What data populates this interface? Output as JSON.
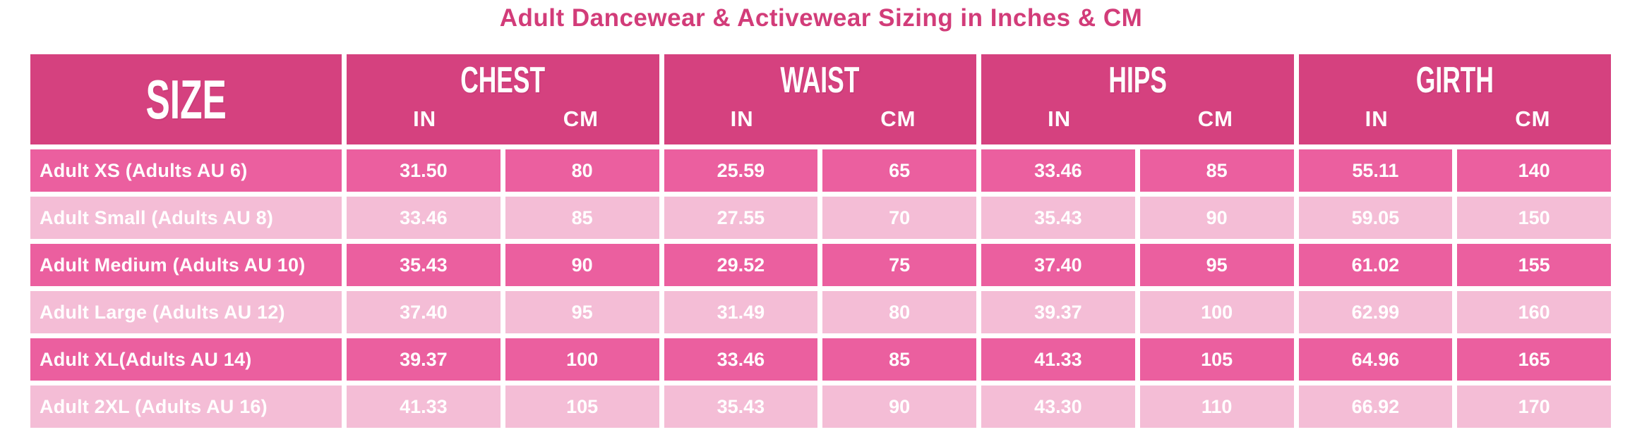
{
  "title": "Adult Dancewear & Activewear Sizing in Inches & CM",
  "colors": {
    "title_text": "#D23C79",
    "header_bg": "#D5417F",
    "row_dark_bg": "#EB5F9F",
    "row_light_bg": "#F4BDD6",
    "table_text": "#FFFFFF"
  },
  "table": {
    "size_header": "SIZE",
    "groups": [
      {
        "label": "CHEST",
        "in": "IN",
        "cm": "CM"
      },
      {
        "label": "WAIST",
        "in": "IN",
        "cm": "CM"
      },
      {
        "label": "HIPS",
        "in": "IN",
        "cm": "CM"
      },
      {
        "label": "GIRTH",
        "in": "IN",
        "cm": "CM"
      }
    ],
    "rows": [
      {
        "label": "Adult XS (Adults AU 6)",
        "values": [
          "31.50",
          "80",
          "25.59",
          "65",
          "33.46",
          "85",
          "55.11",
          "140"
        ]
      },
      {
        "label": "Adult Small (Adults AU 8)",
        "values": [
          "33.46",
          "85",
          "27.55",
          "70",
          "35.43",
          "90",
          "59.05",
          "150"
        ]
      },
      {
        "label": "Adult Medium (Adults AU 10)",
        "values": [
          "35.43",
          "90",
          "29.52",
          "75",
          "37.40",
          "95",
          "61.02",
          "155"
        ]
      },
      {
        "label": "Adult Large (Adults AU 12)",
        "values": [
          "37.40",
          "95",
          "31.49",
          "80",
          "39.37",
          "100",
          "62.99",
          "160"
        ]
      },
      {
        "label": "Adult XL(Adults AU 14)",
        "values": [
          "39.37",
          "100",
          "33.46",
          "85",
          "41.33",
          "105",
          "64.96",
          "165"
        ]
      },
      {
        "label": "Adult 2XL (Adults AU 16)",
        "values": [
          "41.33",
          "105",
          "35.43",
          "90",
          "43.30",
          "110",
          "66.92",
          "170"
        ]
      }
    ]
  },
  "chart_data": {
    "type": "table",
    "title": "Adult Dancewear & Activewear Sizing in Inches & CM",
    "columns": [
      "SIZE",
      "CHEST IN",
      "CHEST CM",
      "WAIST IN",
      "WAIST CM",
      "HIPS IN",
      "HIPS CM",
      "GIRTH IN",
      "GIRTH CM"
    ],
    "rows": [
      [
        "Adult XS (Adults AU 6)",
        31.5,
        80,
        25.59,
        65,
        33.46,
        85,
        55.11,
        140
      ],
      [
        "Adult Small (Adults AU 8)",
        33.46,
        85,
        27.55,
        70,
        35.43,
        90,
        59.05,
        150
      ],
      [
        "Adult Medium (Adults AU 10)",
        35.43,
        90,
        29.52,
        75,
        37.4,
        95,
        61.02,
        155
      ],
      [
        "Adult Large (Adults AU 12)",
        37.4,
        95,
        31.49,
        80,
        39.37,
        100,
        62.99,
        160
      ],
      [
        "Adult XL(Adults AU 14)",
        39.37,
        100,
        33.46,
        85,
        41.33,
        105,
        64.96,
        165
      ],
      [
        "Adult 2XL (Adults AU 16)",
        41.33,
        105,
        35.43,
        90,
        43.3,
        110,
        66.92,
        170
      ]
    ]
  }
}
